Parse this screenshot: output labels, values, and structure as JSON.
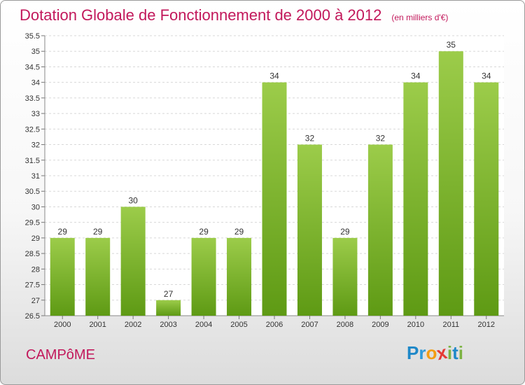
{
  "header": {
    "title": "Dotation Globale de Fonctionnement de 2000 à 2012",
    "unit": "(en milliers d'€)"
  },
  "footer": {
    "commune": "CAMPôME",
    "logo_letters": [
      "P",
      "r",
      "o",
      "x",
      "i",
      "t",
      "i"
    ],
    "logo_colors": [
      "#1e88c8",
      "#2e9ad8",
      "#f39c12",
      "#e53935",
      "#7cb342",
      "#1e88c8",
      "#7cb342"
    ]
  },
  "chart_data": {
    "type": "bar",
    "categories": [
      "2000",
      "2001",
      "2002",
      "2003",
      "2004",
      "2005",
      "2006",
      "2007",
      "2008",
      "2009",
      "2010",
      "2011",
      "2012"
    ],
    "values": [
      29,
      29,
      30,
      27,
      29,
      29,
      34,
      32,
      29,
      32,
      34,
      35,
      34
    ],
    "value_labels": [
      "29",
      "29",
      "30",
      "27",
      "29",
      "29",
      "34",
      "32",
      "29",
      "32",
      "34",
      "35",
      "34"
    ],
    "ylim": [
      26.5,
      35.5
    ],
    "yticks": [
      26.5,
      27,
      27.5,
      28,
      28.5,
      29,
      29.5,
      30,
      30.5,
      31,
      31.5,
      32,
      32.5,
      33,
      33.5,
      34,
      34.5,
      35,
      35.5
    ],
    "ytick_labels": [
      "26.5",
      "27",
      "27.5",
      "28",
      "28.5",
      "29",
      "29.5",
      "30",
      "30.5",
      "31",
      "31.5",
      "32",
      "32.5",
      "33",
      "33.5",
      "34",
      "34.5",
      "35",
      "35.5"
    ],
    "grid": true,
    "bar_color_top": "#9ccc4a",
    "bar_color_bottom": "#5e9a14"
  }
}
